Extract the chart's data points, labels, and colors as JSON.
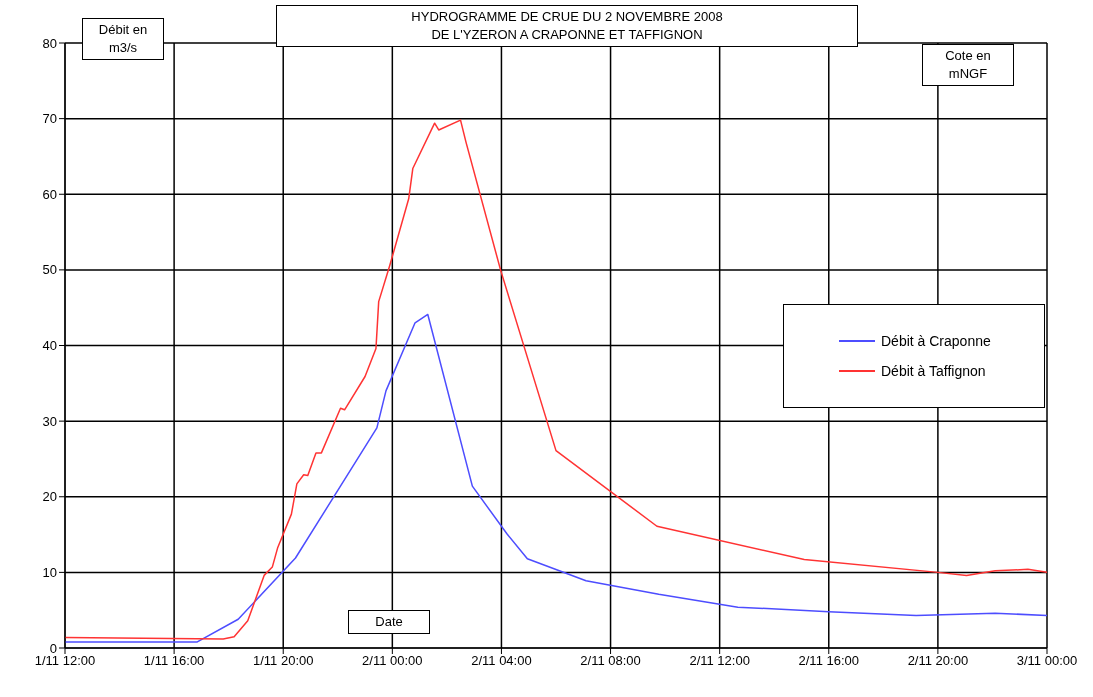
{
  "chart_data": {
    "type": "line",
    "title": "HYDROGRAMME DE CRUE DU 2 NOVEMBRE 2008\nDE L'YZERON A CRAPONNE ET TAFFIGNON",
    "xlabel": "Date",
    "ylabel": "Débit en\nm3/s",
    "y2label": "Cote en\nmNGF",
    "xlim": [
      "2008-11-01T12:00",
      "2008-11-03T00:00"
    ],
    "xticks": [
      {
        "value": "2008-11-01T12:00",
        "label": "1/11 12:00"
      },
      {
        "value": "2008-11-01T16:00",
        "label": "1/11 16:00"
      },
      {
        "value": "2008-11-01T20:00",
        "label": "1/11 20:00"
      },
      {
        "value": "2008-11-02T00:00",
        "label": "2/11 00:00"
      },
      {
        "value": "2008-11-02T04:00",
        "label": "2/11 04:00"
      },
      {
        "value": "2008-11-02T08:00",
        "label": "2/11 08:00"
      },
      {
        "value": "2008-11-02T12:00",
        "label": "2/11 12:00"
      },
      {
        "value": "2008-11-02T16:00",
        "label": "2/11 16:00"
      },
      {
        "value": "2008-11-02T20:00",
        "label": "2/11 20:00"
      },
      {
        "value": "2008-11-03T00:00",
        "label": "3/11 00:00"
      }
    ],
    "ylim": [
      0,
      80
    ],
    "yticks": [
      0,
      10,
      20,
      30,
      40,
      50,
      60,
      70,
      80
    ],
    "grid": true,
    "legend": "right",
    "marker": "none",
    "line_style": "solid",
    "series": [
      {
        "name": "Débit à Craponne",
        "color": "#4d4dff",
        "x": [
          "2008-11-01T12:00",
          "2008-11-01T16:51",
          "2008-11-01T18:21",
          "2008-11-01T20:27",
          "2008-11-01T23:26",
          "2008-11-01T23:46",
          "2008-11-02T00:50",
          "2008-11-02T01:18",
          "2008-11-02T02:56",
          "2008-11-02T04:12",
          "2008-11-02T04:57",
          "2008-11-02T07:06",
          "2008-11-02T09:46",
          "2008-11-02T12:40",
          "2008-11-02T16:00",
          "2008-11-02T19:12",
          "2008-11-02T22:06",
          "2008-11-03T00:00"
        ],
        "values": [
          0.8,
          0.8,
          3.8,
          11.9,
          29.1,
          34,
          43,
          44.1,
          21.4,
          15.1,
          11.8,
          8.9,
          7.1,
          5.4,
          4.8,
          4.3,
          4.6,
          4.3
        ]
      },
      {
        "name": "Débit à Taffignon",
        "color": "#ff3333",
        "x": [
          "2008-11-01T12:00",
          "2008-11-01T17:48",
          "2008-11-01T18:12",
          "2008-11-01T18:42",
          "2008-11-01T19:18",
          "2008-11-01T19:36",
          "2008-11-01T19:48",
          "2008-11-01T20:18",
          "2008-11-01T20:30",
          "2008-11-01T20:45",
          "2008-11-01T20:54",
          "2008-11-01T21:12",
          "2008-11-01T21:24",
          "2008-11-01T22:06",
          "2008-11-01T22:15",
          "2008-11-01T23:00",
          "2008-11-01T23:24",
          "2008-11-01T23:30",
          "2008-11-01T23:54",
          "2008-11-02T00:36",
          "2008-11-02T00:45",
          "2008-11-02T01:33",
          "2008-11-02T01:42",
          "2008-11-02T02:30",
          "2008-11-02T02:42",
          "2008-11-02T03:58",
          "2008-11-02T06:00",
          "2008-11-02T09:42",
          "2008-11-02T15:06",
          "2008-11-02T20:00",
          "2008-11-02T21:03",
          "2008-11-02T22:06",
          "2008-11-02T23:18",
          "2008-11-03T00:00"
        ],
        "values": [
          1.4,
          1.2,
          1.5,
          3.6,
          9.6,
          10.7,
          13.3,
          17.7,
          21.7,
          22.9,
          22.8,
          25.8,
          25.8,
          31.7,
          31.5,
          35.9,
          39.6,
          45.8,
          50.5,
          59.4,
          63.4,
          69.4,
          68.5,
          69.8,
          66.9,
          50,
          26.1,
          16.1,
          11.7,
          10,
          9.6,
          10.2,
          10.4,
          10
        ]
      }
    ]
  }
}
